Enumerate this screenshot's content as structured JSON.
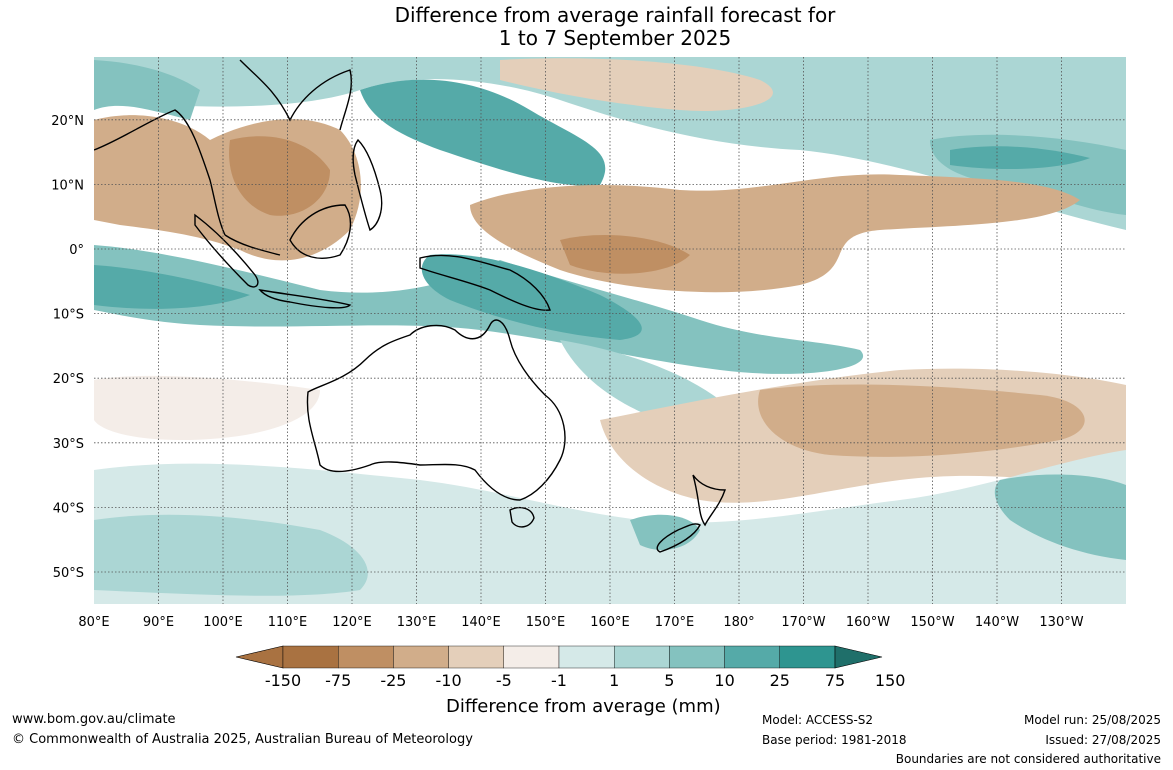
{
  "title": {
    "line1": "Difference from average rainfall forecast for",
    "line2": "1 to 7 September 2025"
  },
  "lat_labels": [
    "20°N",
    "10°N",
    "0°",
    "10°S",
    "20°S",
    "30°S",
    "40°S",
    "50°S"
  ],
  "lon_labels": [
    "80°E",
    "90°E",
    "100°E",
    "110°E",
    "120°E",
    "130°E",
    "140°E",
    "150°E",
    "160°E",
    "170°E",
    "180°",
    "170°W",
    "160°W",
    "150°W",
    "140°W",
    "130°W"
  ],
  "colorbar": {
    "labels": [
      "-150",
      "-75",
      "-25",
      "-10",
      "-5",
      "-1",
      "1",
      "5",
      "10",
      "25",
      "75",
      "150"
    ],
    "colors": [
      "#a97241",
      "#bf8f63",
      "#d1ad8a",
      "#e4cfba",
      "#f4ede8",
      "#ffffff",
      "#d5e9e8",
      "#abd6d4",
      "#84c2bf",
      "#55aaa8",
      "#2e9590",
      "#1f6f6a"
    ],
    "title": "Difference from average (mm)"
  },
  "footer": {
    "website": "www.bom.gov.au/climate",
    "copyright": "© Commonwealth of Australia 2025, Australian Bureau of Meteorology",
    "model": "Model: ACCESS-S2",
    "base_period": "Base period: 1981-2018",
    "model_run": "Model run: 25/08/2025",
    "issued": "Issued: 27/08/2025",
    "disclaimer": "Boundaries are not considered authoritative"
  }
}
